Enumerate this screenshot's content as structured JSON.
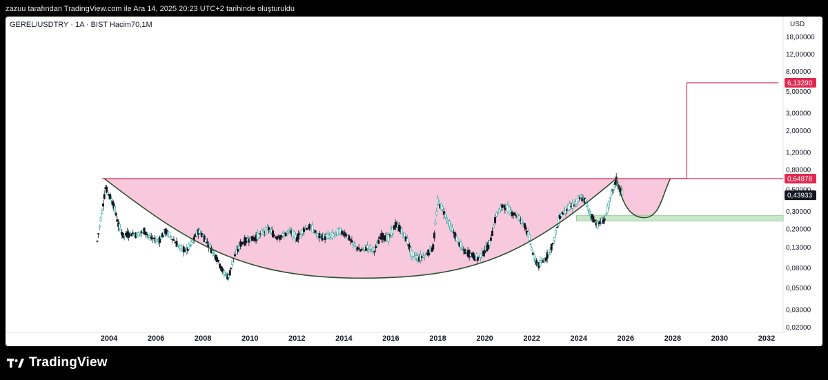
{
  "header": {
    "attribution": "zazuu tarafından TradingView.com ile Ara 14, 2025 20:23 UTC+2 tarihinde oluşturuldu"
  },
  "legend": {
    "symbol": "GEREL/USDTRY · 1A · BIST  Hacim70,1M"
  },
  "axis": {
    "currency": "USD"
  },
  "brand": {
    "name": "TradingView"
  },
  "colors": {
    "up": "#26a69a",
    "down": "#131722",
    "resistance": "#e0294f",
    "cup_fill": "#f8c8dc",
    "cup_line": "#2f4f2f",
    "support_zone": "#c8e6c9",
    "last_price_bg": "#131722"
  },
  "chart_data": {
    "type": "candlestick",
    "scale": "log",
    "x_ticks": [
      "2004",
      "2006",
      "2008",
      "2010",
      "2012",
      "2014",
      "2016",
      "2018",
      "2020",
      "2022",
      "2024",
      "2026",
      "2028",
      "2030",
      "2032"
    ],
    "y_ticks": [
      "18,00000",
      "12,00000",
      "8,00000",
      "5,00000",
      "3,00000",
      "2,00000",
      "1,20000",
      "0,80000",
      "0,50000",
      "0,30000",
      "0,20000",
      "0,13000",
      "0,08000",
      "0,05000",
      "0,03000",
      "0,02000"
    ],
    "y_tick_values": [
      18,
      12,
      8,
      5,
      3,
      2,
      1.2,
      0.8,
      0.5,
      0.3,
      0.2,
      0.13,
      0.08,
      0.05,
      0.03,
      0.02
    ],
    "ylim": [
      0.017,
      25
    ],
    "xlim": [
      2003.0,
      2032.5
    ],
    "resistance_level": 0.64878,
    "target_level": 6.1329,
    "last_price": 0.43933,
    "price_labels": [
      {
        "value": 0.64878,
        "text": "0,64878",
        "color": "#e0294f"
      },
      {
        "value": 6.1329,
        "text": "6,13290",
        "color": "#e0294f"
      },
      {
        "value": 0.43933,
        "text": "0,43933",
        "color": "#131722"
      }
    ],
    "cup": {
      "start_year": 2003.8,
      "end_year": 2025.6,
      "bottom_year": 2014.8,
      "bottom_value": 0.063,
      "top_value": 0.64878
    },
    "handle": {
      "start_year": 2025.6,
      "bottom_year": 2026.8,
      "bottom_value": 0.26,
      "end_year": 2027.9
    },
    "support_zone": {
      "from_year": 2023.9,
      "low": 0.24,
      "high": 0.275
    },
    "target_path": [
      {
        "x": 2027.9,
        "y": 0.64878
      },
      {
        "x": 2028.6,
        "y": 0.64878
      },
      {
        "x": 2028.6,
        "y": 6.1329
      },
      {
        "x": 2032.5,
        "y": 6.1329
      }
    ],
    "price_path": [
      [
        2003.5,
        0.15
      ],
      [
        2003.7,
        0.3
      ],
      [
        2003.85,
        0.52
      ],
      [
        2004.0,
        0.45
      ],
      [
        2004.2,
        0.35
      ],
      [
        2004.4,
        0.22
      ],
      [
        2004.6,
        0.17
      ],
      [
        2004.9,
        0.18
      ],
      [
        2005.2,
        0.175
      ],
      [
        2005.5,
        0.19
      ],
      [
        2005.8,
        0.16
      ],
      [
        2006.1,
        0.15
      ],
      [
        2006.4,
        0.19
      ],
      [
        2006.7,
        0.16
      ],
      [
        2007.0,
        0.13
      ],
      [
        2007.3,
        0.12
      ],
      [
        2007.5,
        0.14
      ],
      [
        2007.8,
        0.19
      ],
      [
        2008.0,
        0.17
      ],
      [
        2008.3,
        0.13
      ],
      [
        2008.6,
        0.1
      ],
      [
        2008.9,
        0.07
      ],
      [
        2009.1,
        0.065
      ],
      [
        2009.3,
        0.1
      ],
      [
        2009.6,
        0.14
      ],
      [
        2009.9,
        0.155
      ],
      [
        2010.2,
        0.16
      ],
      [
        2010.5,
        0.18
      ],
      [
        2010.8,
        0.2
      ],
      [
        2011.1,
        0.165
      ],
      [
        2011.4,
        0.17
      ],
      [
        2011.7,
        0.19
      ],
      [
        2012.0,
        0.16
      ],
      [
        2012.3,
        0.2
      ],
      [
        2012.6,
        0.21
      ],
      [
        2012.9,
        0.17
      ],
      [
        2013.2,
        0.165
      ],
      [
        2013.5,
        0.17
      ],
      [
        2013.8,
        0.19
      ],
      [
        2014.1,
        0.175
      ],
      [
        2014.4,
        0.14
      ],
      [
        2014.7,
        0.12
      ],
      [
        2015.0,
        0.13
      ],
      [
        2015.3,
        0.12
      ],
      [
        2015.6,
        0.17
      ],
      [
        2015.9,
        0.16
      ],
      [
        2016.2,
        0.22
      ],
      [
        2016.4,
        0.2
      ],
      [
        2016.7,
        0.15
      ],
      [
        2016.9,
        0.11
      ],
      [
        2017.2,
        0.1
      ],
      [
        2017.5,
        0.11
      ],
      [
        2017.8,
        0.13
      ],
      [
        2018.0,
        0.38
      ],
      [
        2018.2,
        0.32
      ],
      [
        2018.5,
        0.22
      ],
      [
        2018.8,
        0.16
      ],
      [
        2019.1,
        0.12
      ],
      [
        2019.4,
        0.11
      ],
      [
        2019.7,
        0.1
      ],
      [
        2020.0,
        0.12
      ],
      [
        2020.2,
        0.14
      ],
      [
        2020.5,
        0.28
      ],
      [
        2020.8,
        0.35
      ],
      [
        2021.1,
        0.3
      ],
      [
        2021.4,
        0.27
      ],
      [
        2021.7,
        0.22
      ],
      [
        2021.9,
        0.16
      ],
      [
        2022.1,
        0.1
      ],
      [
        2022.3,
        0.085
      ],
      [
        2022.6,
        0.1
      ],
      [
        2022.9,
        0.14
      ],
      [
        2023.2,
        0.27
      ],
      [
        2023.5,
        0.32
      ],
      [
        2023.8,
        0.35
      ],
      [
        2024.1,
        0.42
      ],
      [
        2024.3,
        0.38
      ],
      [
        2024.5,
        0.28
      ],
      [
        2024.8,
        0.22
      ],
      [
        2025.1,
        0.25
      ],
      [
        2025.4,
        0.45
      ],
      [
        2025.6,
        0.63
      ],
      [
        2025.75,
        0.5
      ],
      [
        2025.9,
        0.44
      ]
    ]
  }
}
